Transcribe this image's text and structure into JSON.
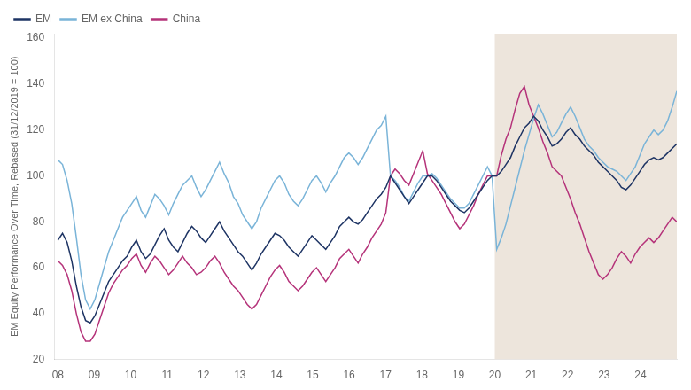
{
  "chart_data": {
    "type": "line",
    "ylabel": "EM Equity Performance Over Time, Rebased (31/12/2019 = 100)",
    "x": [
      2008,
      2008.1269,
      2008.2537,
      2008.3806,
      2008.5075,
      2008.6343,
      2008.7612,
      2008.8881,
      2009.0149,
      2009.1418,
      2009.2687,
      2009.3955,
      2009.5224,
      2009.6493,
      2009.7761,
      2009.903,
      2010.0299,
      2010.1567,
      2010.2836,
      2010.4104,
      2010.5373,
      2010.6642,
      2010.791,
      2010.9179,
      2011.0448,
      2011.1716,
      2011.2985,
      2011.4254,
      2011.5522,
      2011.6791,
      2011.806,
      2011.9328,
      2012.0597,
      2012.1866,
      2012.3134,
      2012.4403,
      2012.5672,
      2012.694,
      2012.8209,
      2012.9478,
      2013.0746,
      2013.2015,
      2013.3284,
      2013.4552,
      2013.5821,
      2013.709,
      2013.8358,
      2013.9627,
      2014.0896,
      2014.2164,
      2014.3433,
      2014.4701,
      2014.597,
      2014.7239,
      2014.8507,
      2014.9776,
      2015.1045,
      2015.2313,
      2015.3582,
      2015.4851,
      2015.6119,
      2015.7388,
      2015.8657,
      2015.9925,
      2016.1194,
      2016.2463,
      2016.3731,
      2016.5,
      2016.6269,
      2016.7537,
      2016.8806,
      2017.0075,
      2017.1343,
      2017.2612,
      2017.3881,
      2017.5149,
      2017.6418,
      2017.7687,
      2017.8955,
      2018.0224,
      2018.1493,
      2018.2761,
      2018.403,
      2018.5299,
      2018.6567,
      2018.7836,
      2018.9104,
      2019.0373,
      2019.1642,
      2019.291,
      2019.4179,
      2019.5448,
      2019.6716,
      2019.7985,
      2019.9254,
      2020.0522,
      2020.1791,
      2020.306,
      2020.4328,
      2020.5597,
      2020.6866,
      2020.8134,
      2020.9403,
      2021.0672,
      2021.194,
      2021.3209,
      2021.4478,
      2021.5746,
      2021.7015,
      2021.8284,
      2021.9552,
      2022.0821,
      2022.209,
      2022.3358,
      2022.4627,
      2022.5896,
      2022.7164,
      2022.8433,
      2022.9701,
      2023.097,
      2023.2239,
      2023.3507,
      2023.4776,
      2023.6045,
      2023.7313,
      2023.8582,
      2023.9851,
      2024.1119,
      2024.2388,
      2024.3657,
      2024.4925,
      2024.6194,
      2024.7463,
      2024.8731,
      2025
    ],
    "series": [
      {
        "name": "EM",
        "color": "#1e3464",
        "values": [
          72,
          75,
          71,
          63,
          52,
          43,
          37,
          36,
          39,
          44,
          49,
          54,
          57,
          60,
          63,
          65,
          69,
          72,
          67,
          64,
          66,
          70,
          74,
          77,
          72,
          69,
          67,
          71,
          75,
          78,
          76,
          73,
          71,
          74,
          77,
          80,
          76,
          73,
          70,
          67,
          65,
          62,
          59,
          62,
          66,
          69,
          72,
          75,
          74,
          72,
          69,
          67,
          65,
          68,
          71,
          74,
          72,
          70,
          68,
          71,
          74,
          78,
          80,
          82,
          80,
          79,
          81,
          84,
          87,
          90,
          92,
          95,
          100,
          97,
          94,
          91,
          88,
          91,
          94,
          97,
          100,
          100,
          98,
          95,
          92,
          89,
          87,
          85,
          84,
          86,
          89,
          92,
          95,
          98,
          100,
          100,
          102,
          105,
          108,
          113,
          117,
          121,
          123,
          126,
          124,
          120,
          117,
          113,
          114,
          116,
          119,
          121,
          118,
          116,
          113,
          111,
          109,
          106,
          104,
          102,
          100,
          98,
          95,
          94,
          96,
          99,
          102,
          105,
          107,
          108,
          107,
          108,
          110,
          112,
          114
        ]
      },
      {
        "name": "EM ex China",
        "color": "#7ab4d8",
        "values": [
          107,
          105,
          98,
          88,
          73,
          57,
          46,
          42,
          46,
          53,
          60,
          67,
          72,
          77,
          82,
          85,
          88,
          91,
          85,
          82,
          87,
          92,
          90,
          87,
          83,
          88,
          92,
          96,
          98,
          100,
          95,
          91,
          94,
          98,
          102,
          106,
          101,
          97,
          91,
          88,
          83,
          80,
          77,
          80,
          86,
          90,
          94,
          98,
          100,
          97,
          92,
          89,
          87,
          90,
          94,
          98,
          100,
          97,
          93,
          97,
          100,
          104,
          108,
          110,
          108,
          105,
          108,
          112,
          116,
          120,
          122,
          126,
          100,
          98,
          95,
          91,
          89,
          93,
          97,
          100,
          100,
          101,
          99,
          96,
          93,
          90,
          88,
          86,
          86,
          88,
          92,
          96,
          100,
          104,
          100,
          68,
          73,
          79,
          87,
          95,
          103,
          111,
          118,
          125,
          131,
          127,
          122,
          117,
          119,
          123,
          127,
          130,
          126,
          121,
          116,
          113,
          111,
          108,
          106,
          104,
          103,
          102,
          100,
          98,
          101,
          104,
          109,
          114,
          117,
          120,
          118,
          120,
          124,
          130,
          137
        ]
      },
      {
        "name": "China",
        "color": "#b5337a",
        "values": [
          63,
          61,
          57,
          50,
          40,
          32,
          28,
          28,
          31,
          37,
          43,
          49,
          53,
          56,
          59,
          61,
          64,
          66,
          61,
          58,
          62,
          65,
          63,
          60,
          57,
          59,
          62,
          65,
          62,
          60,
          57,
          58,
          60,
          63,
          65,
          62,
          58,
          55,
          52,
          50,
          47,
          44,
          42,
          44,
          48,
          52,
          56,
          59,
          61,
          58,
          54,
          52,
          50,
          52,
          55,
          58,
          60,
          57,
          54,
          57,
          60,
          64,
          66,
          68,
          65,
          62,
          66,
          69,
          73,
          76,
          79,
          84,
          100,
          103,
          101,
          98,
          96,
          101,
          106,
          111,
          101,
          98,
          95,
          92,
          88,
          84,
          80,
          77,
          79,
          83,
          87,
          92,
          96,
          100,
          100,
          100,
          109,
          116,
          121,
          129,
          136,
          139,
          131,
          126,
          121,
          115,
          110,
          104,
          102,
          100,
          95,
          90,
          84,
          79,
          73,
          67,
          62,
          57,
          55,
          57,
          60,
          64,
          67,
          65,
          62,
          66,
          69,
          71,
          73,
          71,
          73,
          76,
          79,
          82,
          80
        ]
      }
    ],
    "xlim": [
      2007.9,
      2025
    ],
    "xticks": [
      {
        "value": 2008,
        "label": "08"
      },
      {
        "value": 2009,
        "label": "09"
      },
      {
        "value": 2010,
        "label": "10"
      },
      {
        "value": 2011,
        "label": "11"
      },
      {
        "value": 2012,
        "label": "12"
      },
      {
        "value": 2013,
        "label": "13"
      },
      {
        "value": 2014,
        "label": "14"
      },
      {
        "value": 2015,
        "label": "15"
      },
      {
        "value": 2016,
        "label": "16"
      },
      {
        "value": 2017,
        "label": "17"
      },
      {
        "value": 2018,
        "label": "18"
      },
      {
        "value": 2019,
        "label": "19"
      },
      {
        "value": 2020,
        "label": "20"
      },
      {
        "value": 2021,
        "label": "21"
      },
      {
        "value": 2022,
        "label": "22"
      },
      {
        "value": 2023,
        "label": "23"
      },
      {
        "value": 2024,
        "label": "24"
      }
    ],
    "ylim": [
      20,
      162
    ],
    "yticks": [
      20,
      40,
      60,
      80,
      100,
      120,
      140,
      160
    ],
    "shaded_region": {
      "x_from": 2020,
      "x_to": 2025.2,
      "color": "#ede5dc"
    },
    "grid": false,
    "legend": "upper left"
  }
}
